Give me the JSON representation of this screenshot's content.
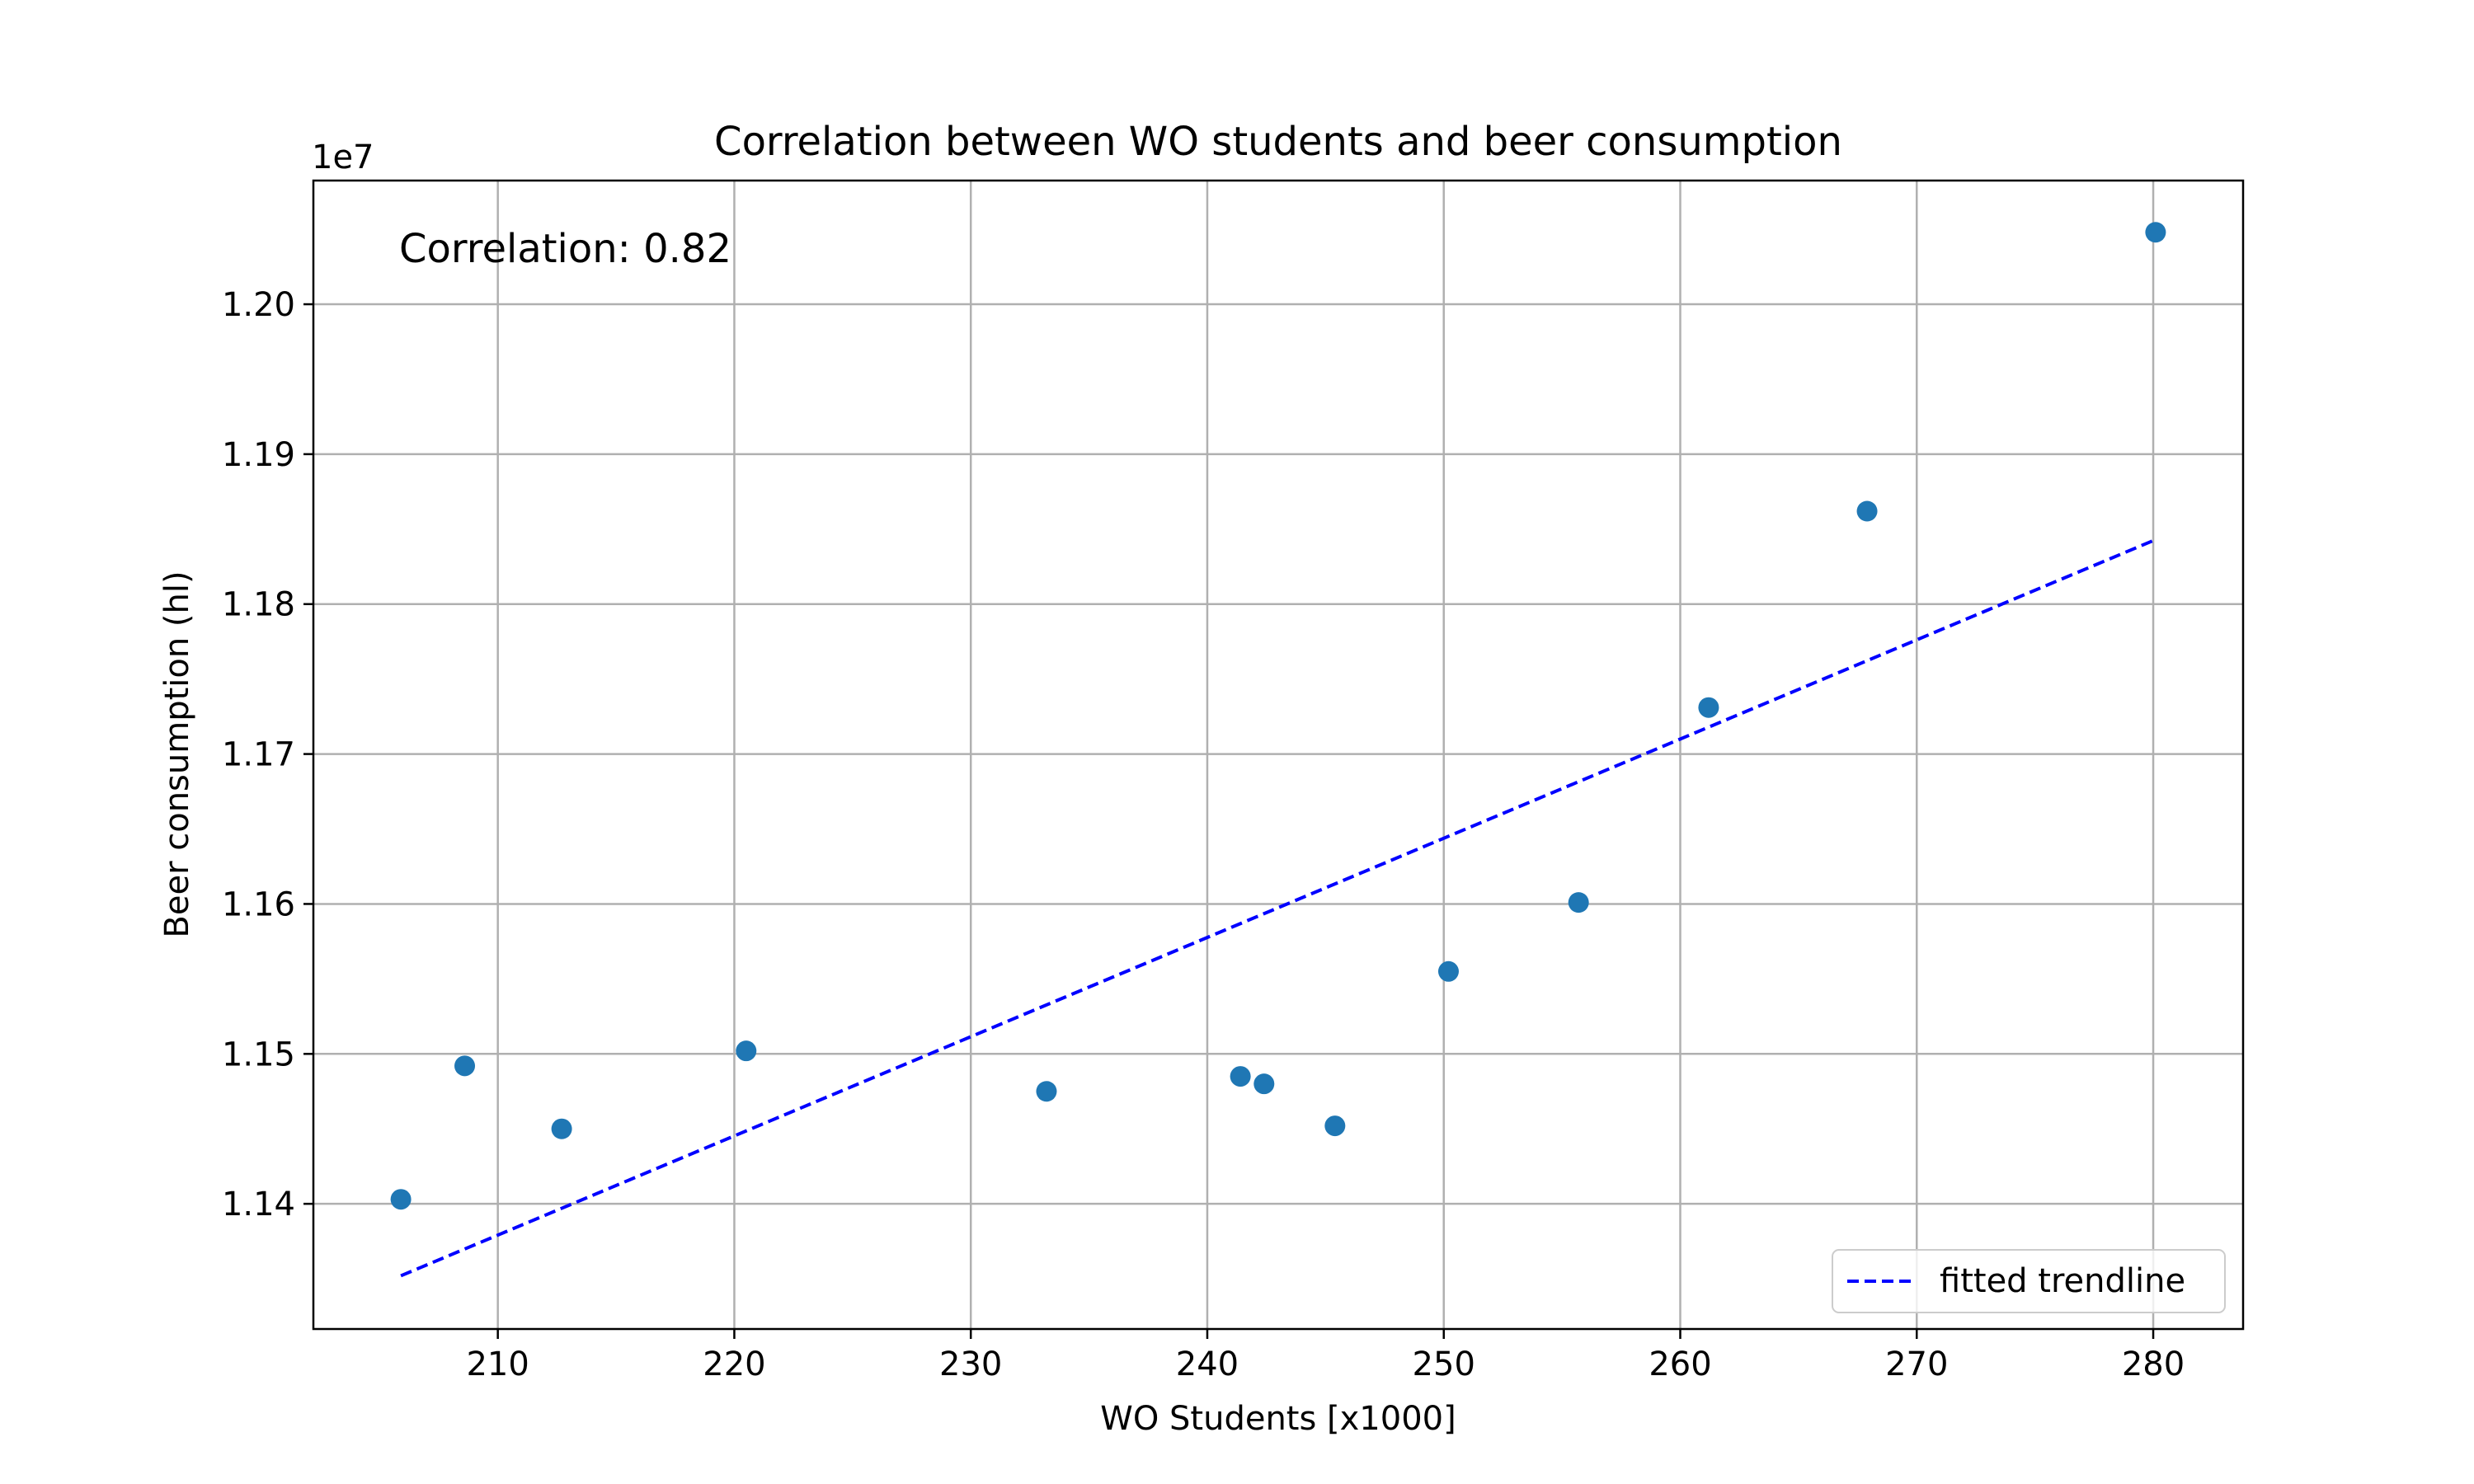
{
  "chart_data": {
    "type": "scatter",
    "title": "Correlation between WO students and beer consumption",
    "xlabel": "WO Students [x1000]",
    "ylabel": "Beer consumption (hl)",
    "y_offset_label": "1e7",
    "annotation": "Correlation: 0.82",
    "xlim": [
      202.2,
      283.8
    ],
    "ylim": [
      11.3165,
      12.0825
    ],
    "x_ticks": [
      210,
      220,
      230,
      240,
      250,
      260,
      270,
      280
    ],
    "y_ticks": [
      11.4,
      11.5,
      11.6,
      11.7,
      11.8,
      11.9,
      12.0
    ],
    "y_tick_labels": [
      "1.14",
      "1.15",
      "1.16",
      "1.17",
      "1.18",
      "1.19",
      "1.20"
    ],
    "grid": true,
    "legend": {
      "placement": "lower-right",
      "entries": [
        "fitted trendline"
      ]
    },
    "points": [
      {
        "x": 205.9,
        "y": 11.403
      },
      {
        "x": 208.6,
        "y": 11.492
      },
      {
        "x": 212.7,
        "y": 11.45
      },
      {
        "x": 220.5,
        "y": 11.502
      },
      {
        "x": 233.2,
        "y": 11.475
      },
      {
        "x": 241.4,
        "y": 11.485
      },
      {
        "x": 242.4,
        "y": 11.48
      },
      {
        "x": 245.4,
        "y": 11.452
      },
      {
        "x": 250.2,
        "y": 11.555
      },
      {
        "x": 255.7,
        "y": 11.601
      },
      {
        "x": 261.2,
        "y": 11.731
      },
      {
        "x": 267.9,
        "y": 11.862
      },
      {
        "x": 280.1,
        "y": 12.048
      }
    ],
    "trendline": {
      "name": "fitted trendline",
      "x": [
        205.9,
        280.1
      ],
      "y": [
        11.352,
        11.843
      ],
      "style": "dashed"
    },
    "colors": {
      "points": "#1f77b4",
      "trendline": "#0000ff",
      "grid": "#b0b0b0"
    }
  }
}
